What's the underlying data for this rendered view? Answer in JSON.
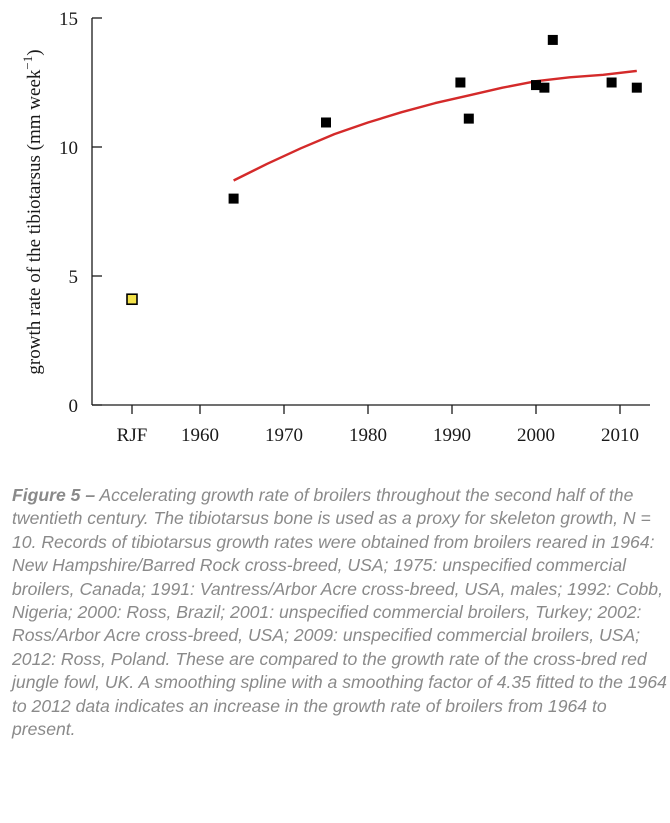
{
  "chart_data": {
    "type": "scatter",
    "ylabel_main": "growth rate of the tibiotarsus (mm week",
    "ylabel_sup": "−1",
    "ylabel_close": ")",
    "ylim": [
      0,
      15
    ],
    "yticks": [
      0,
      5,
      10,
      15
    ],
    "x_categories": [
      "RJF",
      "1960",
      "1970",
      "1980",
      "1990",
      "2000",
      "2010"
    ],
    "points": [
      {
        "x": 1964,
        "y": 8.0
      },
      {
        "x": 1975,
        "y": 10.95
      },
      {
        "x": 1991,
        "y": 12.5
      },
      {
        "x": 1992,
        "y": 11.1
      },
      {
        "x": 2000,
        "y": 12.4
      },
      {
        "x": 2001,
        "y": 12.3
      },
      {
        "x": 2002,
        "y": 14.15
      },
      {
        "x": 2009,
        "y": 12.5
      },
      {
        "x": 2012,
        "y": 12.3
      }
    ],
    "reference_point": {
      "label": "RJF",
      "y": 4.1
    },
    "spline": [
      {
        "x": 1964,
        "y": 8.7
      },
      {
        "x": 1968,
        "y": 9.35
      },
      {
        "x": 1972,
        "y": 9.95
      },
      {
        "x": 1976,
        "y": 10.5
      },
      {
        "x": 1980,
        "y": 10.95
      },
      {
        "x": 1984,
        "y": 11.35
      },
      {
        "x": 1988,
        "y": 11.7
      },
      {
        "x": 1992,
        "y": 12.0
      },
      {
        "x": 1996,
        "y": 12.3
      },
      {
        "x": 2000,
        "y": 12.55
      },
      {
        "x": 2004,
        "y": 12.7
      },
      {
        "x": 2008,
        "y": 12.8
      },
      {
        "x": 2012,
        "y": 12.95
      }
    ],
    "colors": {
      "point": "#000000",
      "reference_point": "#f3e24a",
      "spline": "#d42a2a",
      "axis": "#1a1a1a"
    },
    "grid": false
  },
  "caption": {
    "label": "Figure 5 –",
    "text": "Accelerating growth rate of broilers throughout the second half of the twentieth century. The tibiotarsus bone is used as a proxy for skeleton growth, N = 10. Records of tibiotarsus growth rates were obtained from broilers reared in 1964: New Hampshire/Barred Rock cross-breed, USA; 1975: unspecified commercial broilers, Canada; 1991: Vantress/Arbor Acre cross-breed, USA, males; 1992: Cobb, Nigeria; 2000: Ross, Brazil; 2001: unspecified commercial broilers, Turkey; 2002: Ross/Arbor Acre cross-breed, USA; 2009: unspecified commercial broilers, USA; 2012: Ross, Poland. These are compared to the growth rate of the cross-bred red jungle fowl, UK. A smoothing spline with a smoothing factor of 4.35 fitted to the 1964 to 2012 data indicates an increase in the growth rate of broilers from 1964 to present."
  }
}
